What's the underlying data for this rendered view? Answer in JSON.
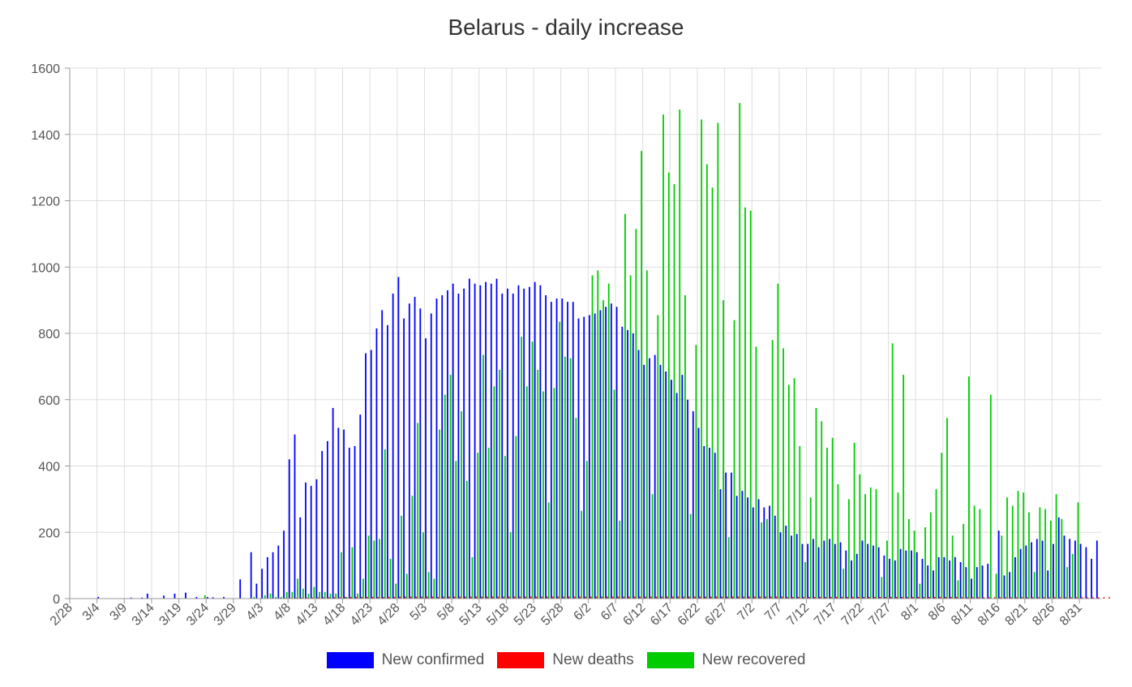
{
  "chart_data": {
    "type": "bar",
    "title": "Belarus - daily increase",
    "xlabel": "",
    "ylabel": "",
    "ylim": [
      0,
      1600
    ],
    "yticks": [
      0,
      200,
      400,
      600,
      800,
      1000,
      1200,
      1400,
      1600
    ],
    "grid": true,
    "legend_position": "bottom",
    "start_date": "2020-02-28",
    "xtick_labels": [
      "2/28",
      "3/4",
      "3/9",
      "3/14",
      "3/19",
      "3/24",
      "3/29",
      "4/3",
      "4/8",
      "4/13",
      "4/18",
      "4/23",
      "4/28",
      "5/3",
      "5/8",
      "5/13",
      "5/18",
      "5/23",
      "5/28",
      "6/2",
      "6/7",
      "6/12",
      "6/17",
      "6/22",
      "6/27",
      "7/2",
      "7/7",
      "7/12",
      "7/17",
      "7/22",
      "7/27",
      "8/1",
      "8/6",
      "8/11",
      "8/16",
      "8/21",
      "8/26",
      "8/31"
    ],
    "series": [
      {
        "name": "New confirmed",
        "color": "#0000ff",
        "values": [
          0,
          0,
          0,
          0,
          0,
          5,
          0,
          0,
          0,
          0,
          0,
          3,
          0,
          3,
          15,
          0,
          0,
          9,
          0,
          15,
          0,
          18,
          0,
          5,
          0,
          5,
          4,
          0,
          5,
          0,
          0,
          58,
          0,
          140,
          45,
          90,
          125,
          140,
          160,
          205,
          420,
          495,
          245,
          350,
          340,
          360,
          445,
          475,
          575,
          515,
          510,
          455,
          460,
          555,
          740,
          750,
          815,
          870,
          825,
          920,
          970,
          845,
          890,
          910,
          875,
          785,
          860,
          905,
          915,
          930,
          950,
          920,
          935,
          965,
          950,
          945,
          955,
          950,
          965,
          920,
          935,
          920,
          945,
          935,
          940,
          955,
          945,
          915,
          895,
          905,
          905,
          895,
          895,
          845,
          850,
          855,
          860,
          870,
          880,
          890,
          880,
          820,
          810,
          800,
          750,
          705,
          725,
          735,
          705,
          685,
          660,
          620,
          675,
          600,
          565,
          515,
          460,
          455,
          440,
          330,
          380,
          380,
          310,
          325,
          305,
          275,
          300,
          275,
          280,
          250,
          200,
          220,
          190,
          195,
          165,
          165,
          180,
          155,
          175,
          180,
          165,
          170,
          145,
          115,
          135,
          175,
          165,
          160,
          155,
          130,
          120,
          115,
          150,
          145,
          145,
          140,
          120,
          100,
          85,
          125,
          125,
          115,
          125,
          110,
          95,
          60,
          95,
          100,
          105,
          0,
          205,
          70,
          80,
          125,
          150,
          160,
          170,
          180,
          175,
          85,
          165,
          245,
          190,
          180,
          175,
          165,
          155,
          120,
          175
        ]
      },
      {
        "name": "New deaths",
        "color": "#ff0000",
        "values": [
          0,
          0,
          0,
          0,
          0,
          0,
          0,
          0,
          0,
          0,
          0,
          0,
          0,
          0,
          0,
          0,
          0,
          0,
          0,
          0,
          0,
          0,
          0,
          0,
          0,
          0,
          0,
          0,
          0,
          0,
          0,
          0,
          0,
          0,
          0,
          0,
          1,
          1,
          2,
          2,
          2,
          3,
          3,
          3,
          3,
          4,
          4,
          4,
          4,
          4,
          5,
          5,
          5,
          5,
          5,
          5,
          5,
          5,
          5,
          5,
          6,
          6,
          6,
          6,
          6,
          6,
          6,
          5,
          6,
          6,
          6,
          6,
          6,
          6,
          6,
          6,
          6,
          6,
          6,
          6,
          6,
          6,
          6,
          6,
          6,
          6,
          6,
          6,
          6,
          6,
          6,
          6,
          6,
          6,
          6,
          6,
          6,
          6,
          6,
          6,
          6,
          6,
          6,
          6,
          6,
          6,
          6,
          6,
          6,
          6,
          6,
          6,
          6,
          6,
          6,
          6,
          6,
          6,
          6,
          6,
          6,
          6,
          6,
          6,
          6,
          6,
          6,
          6,
          6,
          6,
          6,
          5,
          5,
          5,
          5,
          5,
          5,
          5,
          5,
          5,
          5,
          5,
          5,
          5,
          5,
          5,
          5,
          5,
          5,
          5,
          5,
          5,
          5,
          5,
          5,
          5,
          5,
          5,
          5,
          5,
          5,
          5,
          5,
          4,
          4,
          4,
          4,
          4,
          4,
          4,
          4,
          4,
          4,
          4,
          4,
          4,
          4,
          4,
          4,
          4,
          4,
          4,
          4,
          4,
          4,
          4,
          4,
          4,
          4,
          4,
          4
        ]
      },
      {
        "name": "New recovered",
        "color": "#00cc00",
        "values": [
          0,
          0,
          0,
          0,
          0,
          0,
          0,
          0,
          0,
          0,
          0,
          0,
          0,
          0,
          0,
          0,
          0,
          0,
          0,
          0,
          0,
          0,
          0,
          0,
          10,
          0,
          0,
          0,
          0,
          0,
          0,
          0,
          0,
          5,
          0,
          10,
          15,
          5,
          5,
          20,
          20,
          60,
          30,
          15,
          35,
          20,
          20,
          15,
          15,
          140,
          5,
          155,
          15,
          60,
          190,
          175,
          180,
          450,
          120,
          45,
          250,
          75,
          310,
          530,
          200,
          80,
          60,
          510,
          615,
          675,
          415,
          565,
          355,
          125,
          440,
          735,
          455,
          640,
          690,
          430,
          200,
          490,
          790,
          640,
          775,
          690,
          625,
          290,
          635,
          835,
          730,
          725,
          545,
          265,
          415,
          975,
          990,
          900,
          950,
          630,
          235,
          1160,
          975,
          1115,
          1350,
          990,
          315,
          855,
          1460,
          1285,
          1250,
          1475,
          915,
          255,
          765,
          1445,
          1310,
          1240,
          1435,
          900,
          185,
          840,
          1495,
          1180,
          1170,
          760,
          230,
          240,
          780,
          950,
          755,
          645,
          665,
          460,
          110,
          305,
          575,
          535,
          455,
          485,
          345,
          90,
          300,
          470,
          375,
          315,
          335,
          330,
          65,
          175,
          770,
          320,
          675,
          240,
          205,
          45,
          215,
          260,
          330,
          440,
          545,
          190,
          55,
          225,
          670,
          280,
          270,
          0,
          615,
          75,
          190,
          305,
          280,
          325,
          320,
          260,
          80,
          275,
          270,
          235,
          315,
          240,
          95,
          135,
          290
        ]
      }
    ]
  }
}
